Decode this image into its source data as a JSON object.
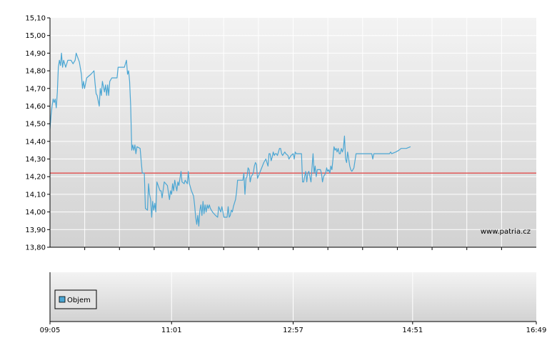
{
  "chart_data": [
    {
      "type": "line",
      "watermark": "www.patria.cz",
      "y_ticks": [
        "15,10",
        "15,00",
        "14,90",
        "14,80",
        "14,70",
        "14,60",
        "14,50",
        "14,40",
        "14,30",
        "14,20",
        "14,10",
        "14,00",
        "13,90",
        "13,80"
      ],
      "ylim": [
        13.8,
        15.1
      ],
      "xlim": [
        "09:05",
        "16:49"
      ],
      "reference_line": 14.22,
      "grid": true,
      "colors": {
        "series": "#4ba6d3",
        "reference": "#e15a5a",
        "grid": "#ffffff"
      },
      "series": [
        {
          "points": [
            [
              "09:05",
              14.47
            ],
            [
              "09:06",
              14.55
            ],
            [
              "09:07",
              14.6
            ],
            [
              "09:08",
              14.64
            ],
            [
              "09:09",
              14.62
            ],
            [
              "09:10",
              14.64
            ],
            [
              "09:11",
              14.59
            ],
            [
              "09:12",
              14.68
            ],
            [
              "09:13",
              14.82
            ],
            [
              "09:14",
              14.86
            ],
            [
              "09:15",
              14.83
            ],
            [
              "09:16",
              14.9
            ],
            [
              "09:17",
              14.82
            ],
            [
              "09:18",
              14.86
            ],
            [
              "09:20",
              14.82
            ],
            [
              "09:22",
              14.86
            ],
            [
              "09:25",
              14.86
            ],
            [
              "09:27",
              14.84
            ],
            [
              "09:29",
              14.86
            ],
            [
              "09:30",
              14.9
            ],
            [
              "09:33",
              14.85
            ],
            [
              "09:35",
              14.78
            ],
            [
              "09:36",
              14.7
            ],
            [
              "09:37",
              14.74
            ],
            [
              "09:38",
              14.7
            ],
            [
              "09:40",
              14.76
            ],
            [
              "09:44",
              14.78
            ],
            [
              "09:47",
              14.8
            ],
            [
              "09:48",
              14.73
            ],
            [
              "09:49",
              14.67
            ],
            [
              "09:50",
              14.66
            ],
            [
              "09:52",
              14.6
            ],
            [
              "09:53",
              14.7
            ],
            [
              "09:54",
              14.66
            ],
            [
              "09:55",
              14.74
            ],
            [
              "09:57",
              14.68
            ],
            [
              "09:58",
              14.72
            ],
            [
              "09:59",
              14.66
            ],
            [
              "10:00",
              14.72
            ],
            [
              "10:01",
              14.66
            ],
            [
              "10:02",
              14.74
            ],
            [
              "10:04",
              14.76
            ],
            [
              "10:09",
              14.76
            ],
            [
              "10:10",
              14.82
            ],
            [
              "10:16",
              14.82
            ],
            [
              "10:18",
              14.86
            ],
            [
              "10:19",
              14.78
            ],
            [
              "10:20",
              14.8
            ],
            [
              "10:21",
              14.74
            ],
            [
              "10:22",
              14.6
            ],
            [
              "10:23",
              14.35
            ],
            [
              "10:24",
              14.38
            ],
            [
              "10:25",
              14.35
            ],
            [
              "10:26",
              14.38
            ],
            [
              "10:27",
              14.33
            ],
            [
              "10:28",
              14.37
            ],
            [
              "10:31",
              14.36
            ],
            [
              "10:33",
              14.22
            ],
            [
              "10:35",
              14.22
            ],
            [
              "10:36",
              14.02
            ],
            [
              "10:38",
              14.01
            ],
            [
              "10:39",
              14.16
            ],
            [
              "10:40",
              14.1
            ],
            [
              "10:41",
              14.07
            ],
            [
              "10:42",
              13.97
            ],
            [
              "10:43",
              14.06
            ],
            [
              "10:44",
              14.01
            ],
            [
              "10:45",
              14.05
            ],
            [
              "10:46",
              14.0
            ],
            [
              "10:47",
              14.17
            ],
            [
              "10:50",
              14.12
            ],
            [
              "10:51",
              14.12
            ],
            [
              "10:52",
              14.08
            ],
            [
              "10:54",
              14.17
            ],
            [
              "10:57",
              14.15
            ],
            [
              "10:59",
              14.07
            ],
            [
              "11:00",
              14.12
            ],
            [
              "11:01",
              14.1
            ],
            [
              "11:02",
              14.16
            ],
            [
              "11:03",
              14.12
            ],
            [
              "11:04",
              14.18
            ],
            [
              "11:05",
              14.15
            ],
            [
              "11:06",
              14.12
            ],
            [
              "11:07",
              14.17
            ],
            [
              "11:08",
              14.15
            ],
            [
              "11:09",
              14.19
            ],
            [
              "11:10",
              14.23
            ],
            [
              "11:11",
              14.17
            ],
            [
              "11:13",
              14.16
            ],
            [
              "11:14",
              14.18
            ],
            [
              "11:16",
              14.16
            ],
            [
              "11:17",
              14.23
            ],
            [
              "11:18",
              14.16
            ],
            [
              "11:20",
              14.12
            ],
            [
              "11:22",
              14.09
            ],
            [
              "11:23",
              14.04
            ],
            [
              "11:24",
              13.97
            ],
            [
              "11:25",
              13.93
            ],
            [
              "11:26",
              13.98
            ],
            [
              "11:27",
              13.92
            ],
            [
              "11:28",
              14.01
            ],
            [
              "11:29",
              14.04
            ],
            [
              "11:30",
              13.98
            ],
            [
              "11:31",
              14.06
            ],
            [
              "11:32",
              13.99
            ],
            [
              "11:33",
              14.04
            ],
            [
              "11:34",
              14.0
            ],
            [
              "11:35",
              14.04
            ],
            [
              "11:36",
              14.02
            ],
            [
              "11:37",
              14.04
            ],
            [
              "11:38",
              14.02
            ],
            [
              "11:40",
              14.0
            ],
            [
              "11:43",
              13.98
            ],
            [
              "11:45",
              13.97
            ],
            [
              "11:46",
              14.03
            ],
            [
              "11:48",
              14.0
            ],
            [
              "11:49",
              14.03
            ],
            [
              "11:50",
              14.0
            ],
            [
              "11:51",
              13.97
            ],
            [
              "11:54",
              13.97
            ],
            [
              "11:55",
              14.03
            ],
            [
              "11:56",
              13.97
            ],
            [
              "11:57",
              13.98
            ],
            [
              "11:58",
              14.01
            ],
            [
              "11:59",
              14.0
            ],
            [
              "12:00",
              14.03
            ],
            [
              "12:02",
              14.07
            ],
            [
              "12:03",
              14.11
            ],
            [
              "12:04",
              14.18
            ],
            [
              "12:06",
              14.18
            ],
            [
              "12:09",
              14.18
            ],
            [
              "12:10",
              14.22
            ],
            [
              "12:11",
              14.1
            ],
            [
              "12:12",
              14.19
            ],
            [
              "12:13",
              14.2
            ],
            [
              "12:14",
              14.25
            ],
            [
              "12:15",
              14.24
            ],
            [
              "12:16",
              14.17
            ],
            [
              "12:17",
              14.2
            ],
            [
              "12:18",
              14.21
            ],
            [
              "12:19",
              14.22
            ],
            [
              "12:20",
              14.26
            ],
            [
              "12:21",
              14.28
            ],
            [
              "12:22",
              14.27
            ],
            [
              "12:23",
              14.19
            ],
            [
              "12:25",
              14.22
            ],
            [
              "12:27",
              14.25
            ],
            [
              "12:29",
              14.28
            ],
            [
              "12:31",
              14.3
            ],
            [
              "12:33",
              14.26
            ],
            [
              "12:34",
              14.33
            ],
            [
              "12:35",
              14.33
            ],
            [
              "12:36",
              14.29
            ],
            [
              "12:37",
              14.31
            ],
            [
              "12:38",
              14.34
            ],
            [
              "12:39",
              14.32
            ],
            [
              "12:40",
              14.33
            ],
            [
              "12:41",
              14.33
            ],
            [
              "12:42",
              14.32
            ],
            [
              "12:43",
              14.34
            ],
            [
              "12:44",
              14.36
            ],
            [
              "12:45",
              14.36
            ],
            [
              "12:46",
              14.33
            ],
            [
              "12:47",
              14.32
            ],
            [
              "12:49",
              14.34
            ],
            [
              "12:50",
              14.33
            ],
            [
              "12:52",
              14.32
            ],
            [
              "12:53",
              14.3
            ],
            [
              "12:55",
              14.32
            ],
            [
              "12:57",
              14.33
            ],
            [
              "12:58",
              14.3
            ],
            [
              "12:59",
              14.34
            ],
            [
              "13:00",
              14.33
            ],
            [
              "13:01",
              14.33
            ],
            [
              "13:03",
              14.33
            ],
            [
              "13:05",
              14.33
            ],
            [
              "13:06",
              14.17
            ],
            [
              "13:07",
              14.17
            ],
            [
              "13:08",
              14.2
            ],
            [
              "13:09",
              14.23
            ],
            [
              "13:10",
              14.17
            ],
            [
              "13:11",
              14.22
            ],
            [
              "13:12",
              14.23
            ],
            [
              "13:13",
              14.2
            ],
            [
              "13:14",
              14.17
            ],
            [
              "13:16",
              14.33
            ],
            [
              "13:17",
              14.22
            ],
            [
              "13:18",
              14.26
            ],
            [
              "13:19",
              14.2
            ],
            [
              "13:20",
              14.24
            ],
            [
              "13:21",
              14.24
            ],
            [
              "13:23",
              14.24
            ],
            [
              "13:24",
              14.22
            ],
            [
              "13:25",
              14.17
            ],
            [
              "13:26",
              14.2
            ],
            [
              "13:28",
              14.22
            ],
            [
              "13:29",
              14.25
            ],
            [
              "13:30",
              14.23
            ],
            [
              "13:31",
              14.24
            ],
            [
              "13:32",
              14.22
            ],
            [
              "13:33",
              14.26
            ],
            [
              "13:34",
              14.24
            ],
            [
              "13:35",
              14.3
            ],
            [
              "13:36",
              14.37
            ],
            [
              "13:37",
              14.35
            ],
            [
              "13:38",
              14.36
            ],
            [
              "13:39",
              14.34
            ],
            [
              "13:40",
              14.36
            ],
            [
              "13:41",
              14.33
            ],
            [
              "13:42",
              14.33
            ],
            [
              "13:43",
              14.36
            ],
            [
              "13:44",
              14.34
            ],
            [
              "13:45",
              14.36
            ],
            [
              "13:46",
              14.43
            ],
            [
              "13:47",
              14.3
            ],
            [
              "13:48",
              14.28
            ],
            [
              "13:49",
              14.34
            ],
            [
              "13:50",
              14.3
            ],
            [
              "13:51",
              14.26
            ],
            [
              "13:52",
              14.24
            ],
            [
              "13:53",
              14.23
            ],
            [
              "13:54",
              14.24
            ],
            [
              "13:55",
              14.25
            ],
            [
              "13:56",
              14.29
            ],
            [
              "13:57",
              14.33
            ],
            [
              "14:00",
              14.33
            ],
            [
              "14:05",
              14.33
            ],
            [
              "14:10",
              14.33
            ],
            [
              "14:11",
              14.33
            ],
            [
              "14:12",
              14.33
            ],
            [
              "14:13",
              14.3
            ],
            [
              "14:14",
              14.33
            ],
            [
              "14:15",
              14.33
            ],
            [
              "14:20",
              14.33
            ],
            [
              "14:25",
              14.33
            ],
            [
              "14:27",
              14.33
            ],
            [
              "14:28",
              14.33
            ],
            [
              "14:29",
              14.33
            ],
            [
              "14:30",
              14.34
            ],
            [
              "14:31",
              14.33
            ],
            [
              "14:35",
              14.34
            ],
            [
              "14:38",
              14.35
            ],
            [
              "14:40",
              14.36
            ],
            [
              "14:45",
              14.36
            ],
            [
              "14:49",
              14.37
            ]
          ]
        }
      ]
    },
    {
      "type": "bar",
      "legend": "Objem",
      "legend_placement": "top-left",
      "colors": {
        "legend_swatch": "#4ba6d3"
      },
      "x_ticks": [
        "09:05",
        "11:01",
        "12:57",
        "14:51",
        "16:49"
      ],
      "grid": true
    }
  ]
}
